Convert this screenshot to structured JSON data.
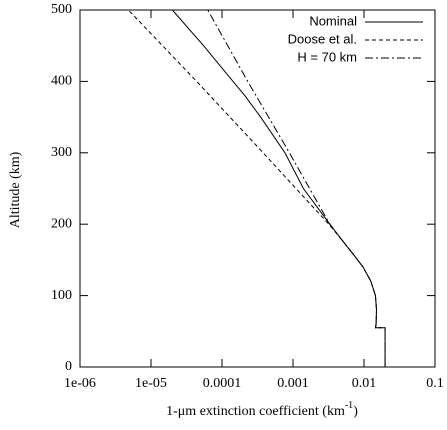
{
  "chart_data": {
    "type": "line",
    "xlabel": [
      "1-μm extinction coefficient (km",
      "-1",
      ")"
    ],
    "ylabel": "Altitude (km)",
    "xscale": "log",
    "xlim": [
      1e-06,
      0.1
    ],
    "xticks": [
      {
        "value": 1e-06,
        "label": "1e-06"
      },
      {
        "value": 1e-05,
        "label": "1e-05"
      },
      0.0001,
      0.001,
      0.01,
      0.1
    ],
    "ylim": [
      0,
      500
    ],
    "yticks": [
      0,
      100,
      200,
      300,
      400,
      500
    ],
    "legend": "top-right",
    "series": [
      {
        "name": "Nominal",
        "color": "#000000",
        "style": "solid",
        "y": [
          0,
          55,
          55,
          60,
          80,
          100,
          120,
          140,
          160,
          180,
          200,
          250,
          300,
          350,
          380,
          400,
          450,
          500
        ],
        "x": [
          0.0198,
          0.0198,
          0.0145,
          0.0148,
          0.015,
          0.0145,
          0.0125,
          0.0097,
          0.0068,
          0.0047,
          0.0033,
          0.0014,
          0.00077,
          0.00035,
          0.00021,
          0.000143,
          5.5e-05,
          2e-05
        ]
      },
      {
        "name": "Doose et al.",
        "color": "#000000",
        "style": "dashed",
        "y": [
          0,
          55,
          55,
          60,
          80,
          100,
          120,
          140,
          160,
          180,
          200,
          250,
          300,
          400,
          500
        ],
        "x": [
          0.0198,
          0.0198,
          0.0145,
          0.0148,
          0.015,
          0.0145,
          0.0125,
          0.0097,
          0.0068,
          0.0047,
          0.0032,
          0.0011,
          0.00038,
          4.4e-05,
          4.8e-06
        ]
      },
      {
        "name": "H = 70 km",
        "color": "#000000",
        "style": "dashdot",
        "y": [
          0,
          55,
          55,
          60,
          80,
          100,
          120,
          140,
          160,
          180,
          200,
          300,
          400,
          500
        ],
        "x": [
          0.0198,
          0.0198,
          0.0145,
          0.0148,
          0.015,
          0.0145,
          0.0125,
          0.0097,
          0.0068,
          0.0047,
          0.0033,
          0.00089,
          0.00023,
          6.3e-05
        ]
      }
    ]
  }
}
